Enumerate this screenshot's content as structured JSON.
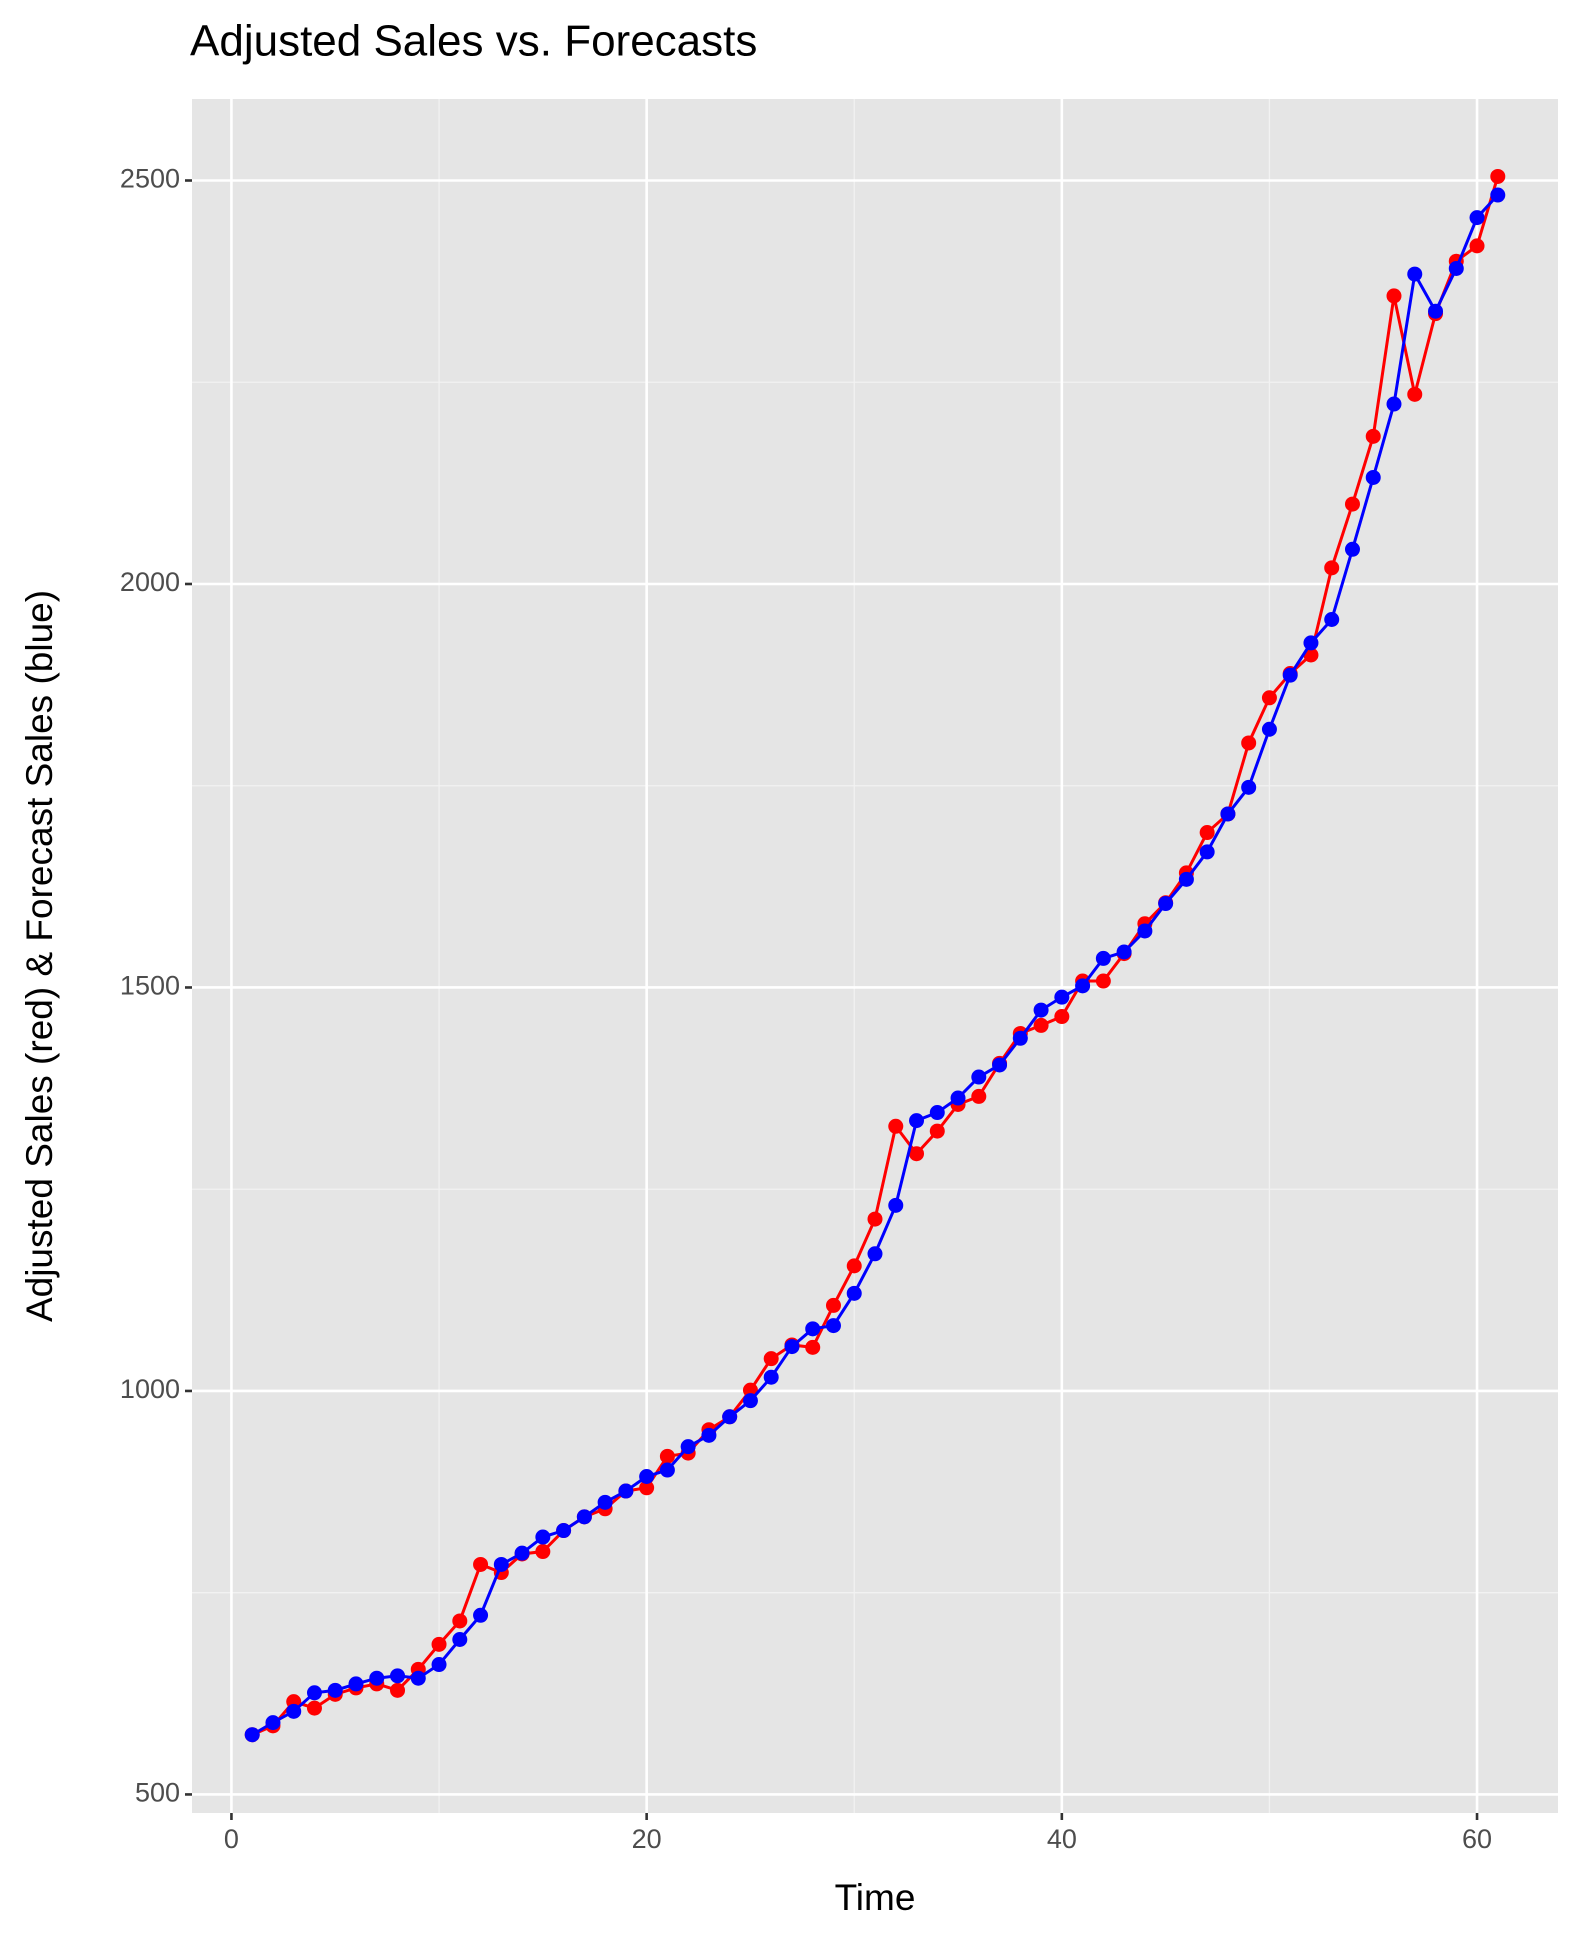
{
  "chart_data": {
    "type": "line",
    "title": "Adjusted Sales vs. Forecasts",
    "x_label": "Time",
    "y_label": "Adjusted Sales (red) & Forecast Sales (blue)",
    "x": [
      1,
      2,
      3,
      4,
      5,
      6,
      7,
      8,
      9,
      10,
      11,
      12,
      13,
      14,
      15,
      16,
      17,
      18,
      19,
      20,
      21,
      22,
      23,
      24,
      25,
      26,
      27,
      28,
      29,
      30,
      31,
      32,
      33,
      34,
      35,
      36,
      37,
      38,
      39,
      40,
      41,
      42,
      43,
      44,
      45,
      46,
      47,
      48,
      49,
      50,
      51,
      52,
      53,
      54,
      55,
      56,
      57,
      58,
      59,
      60,
      61
    ],
    "series": [
      {
        "name": "Adjusted Sales",
        "color": "#ff0000",
        "values": [
          574,
          585,
          615,
          607,
          624,
          632,
          637,
          629,
          655,
          686,
          715,
          785,
          775,
          798,
          801,
          827,
          844,
          854,
          876,
          880,
          919,
          923,
          952,
          968,
          1001,
          1040,
          1057,
          1054,
          1106,
          1155,
          1213,
          1328,
          1294,
          1322,
          1355,
          1365,
          1406,
          1443,
          1453,
          1464,
          1508,
          1508,
          1542,
          1579,
          1605,
          1642,
          1692,
          1715,
          1803,
          1859,
          1889,
          1912,
          2020,
          2099,
          2183,
          2357,
          2235,
          2335,
          2400,
          2419,
          2505
        ]
      },
      {
        "name": "Forecast Sales",
        "color": "#0000ff",
        "values": [
          574,
          589,
          603,
          626,
          629,
          637,
          644,
          647,
          644,
          661,
          692,
          722,
          785,
          799,
          819,
          827,
          844,
          862,
          876,
          894,
          902,
          931,
          945,
          968,
          988,
          1017,
          1055,
          1077,
          1081,
          1121,
          1170,
          1230,
          1335,
          1345,
          1363,
          1389,
          1404,
          1437,
          1472,
          1488,
          1502,
          1536,
          1544,
          1570,
          1604,
          1634,
          1668,
          1715,
          1748,
          1820,
          1887,
          1927,
          1956,
          2043,
          2132,
          2223,
          2384,
          2338,
          2391,
          2454,
          2482
        ]
      }
    ],
    "xlim": [
      -1.9,
      63.9
    ],
    "ylim": [
      477,
      2601
    ],
    "xticks": [
      0,
      20,
      40,
      60
    ],
    "yticks": [
      500,
      1000,
      1500,
      2000,
      2500
    ],
    "minor_xticks": [
      10,
      30,
      50
    ],
    "minor_yticks": [
      750,
      1250,
      1750,
      2250
    ],
    "grid": true
  }
}
